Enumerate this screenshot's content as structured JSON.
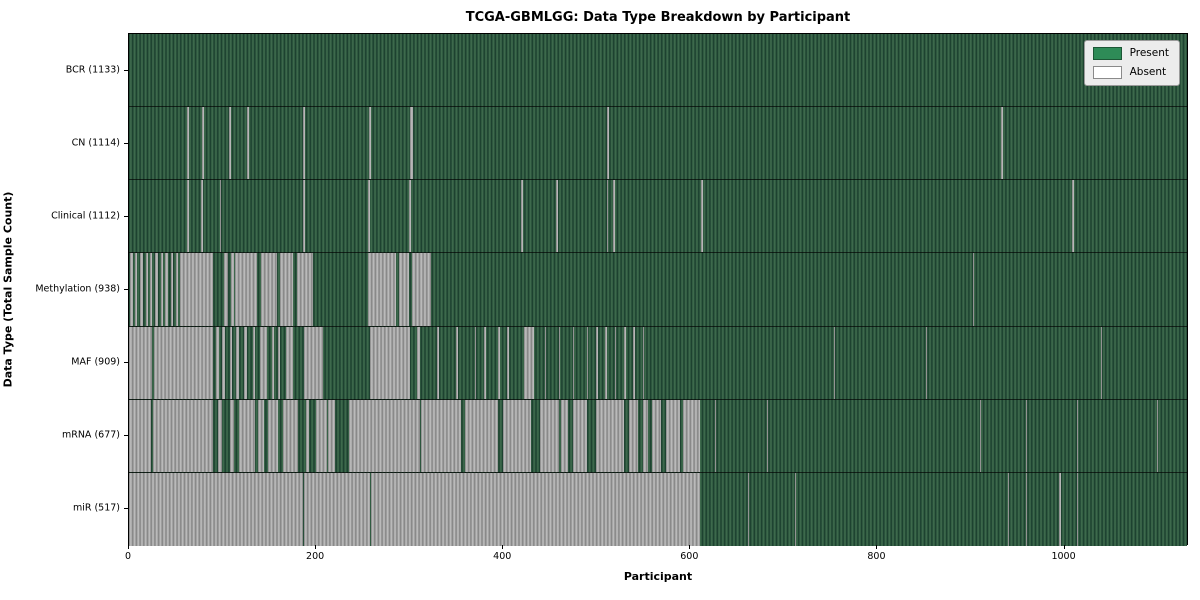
{
  "title": "TCGA-GBMLGG: Data Type Breakdown by Participant",
  "xlabel": "Participant",
  "ylabel": "Data Type (Total Sample Count)",
  "legend": {
    "position": "upper right",
    "items": [
      {
        "label": "Present",
        "color": "#2e8b57"
      },
      {
        "label": "Absent",
        "color": "#ffffff"
      }
    ]
  },
  "colors": {
    "present_fill": "#2e8b57",
    "present_stripe_dark": "#16382a",
    "absent_fill": "#ffffff",
    "absent_stripe_gray": "#a3a3a3",
    "axis": "#000000",
    "background": "#ffffff"
  },
  "chart_data": {
    "type": "heatmap",
    "x_axis": {
      "label": "Participant",
      "range": [
        0,
        1133
      ],
      "ticks": [
        0,
        200,
        400,
        600,
        800,
        1000
      ]
    },
    "n_participants": 1133,
    "grid": false,
    "rows": [
      {
        "label": "BCR (1133)",
        "name": "BCR",
        "present_count": 1133,
        "absent_segments": []
      },
      {
        "label": "CN (1114)",
        "name": "CN",
        "present_count": 1114,
        "absent_segments": [
          [
            62,
            64
          ],
          [
            78,
            80
          ],
          [
            83,
            84
          ],
          [
            107,
            109
          ],
          [
            126,
            128
          ],
          [
            186,
            188
          ],
          [
            257,
            259
          ],
          [
            301,
            304
          ],
          [
            512,
            514
          ],
          [
            934,
            936
          ]
        ]
      },
      {
        "label": "Clinical (1112)",
        "name": "Clinical",
        "present_count": 1112,
        "absent_segments": [
          [
            62,
            64
          ],
          [
            77,
            79
          ],
          [
            97,
            99
          ],
          [
            186,
            188
          ],
          [
            256,
            258
          ],
          [
            300,
            302
          ],
          [
            420,
            422
          ],
          [
            457,
            459
          ],
          [
            512,
            513
          ],
          [
            518,
            520
          ],
          [
            613,
            615
          ],
          [
            1010,
            1012
          ]
        ]
      },
      {
        "label": "Methylation (938)",
        "name": "Methylation",
        "present_count": 938,
        "absent_segments": [
          [
            1,
            4
          ],
          [
            6,
            9
          ],
          [
            12,
            15
          ],
          [
            18,
            20
          ],
          [
            22,
            25
          ],
          [
            28,
            31
          ],
          [
            34,
            36
          ],
          [
            39,
            42
          ],
          [
            45,
            47
          ],
          [
            50,
            53
          ],
          [
            55,
            90
          ],
          [
            102,
            106
          ],
          [
            109,
            112
          ],
          [
            114,
            137
          ],
          [
            141,
            158
          ],
          [
            162,
            176
          ],
          [
            180,
            197
          ],
          [
            256,
            286
          ],
          [
            289,
            300
          ],
          [
            303,
            323
          ],
          [
            904,
            905
          ]
        ]
      },
      {
        "label": "MAF (909)",
        "name": "MAF",
        "present_count": 909,
        "absent_segments": [
          [
            0,
            25
          ],
          [
            27,
            90
          ],
          [
            93,
            96
          ],
          [
            100,
            103
          ],
          [
            108,
            110
          ],
          [
            115,
            118
          ],
          [
            123,
            126
          ],
          [
            133,
            135
          ],
          [
            140,
            148
          ],
          [
            153,
            155
          ],
          [
            160,
            162
          ],
          [
            168,
            176
          ],
          [
            187,
            208
          ],
          [
            258,
            301
          ],
          [
            308,
            312
          ],
          [
            330,
            332
          ],
          [
            350,
            352
          ],
          [
            370,
            372
          ],
          [
            380,
            382
          ],
          [
            395,
            397
          ],
          [
            405,
            407
          ],
          [
            423,
            434
          ],
          [
            445,
            447
          ],
          [
            460,
            462
          ],
          [
            475,
            477
          ],
          [
            490,
            492
          ],
          [
            500,
            502
          ],
          [
            510,
            512
          ],
          [
            520,
            522
          ],
          [
            530,
            532
          ],
          [
            540,
            542
          ],
          [
            550,
            552
          ],
          [
            755,
            756
          ],
          [
            854,
            855
          ],
          [
            1041,
            1042
          ]
        ]
      },
      {
        "label": "mRNA (677)",
        "name": "mRNA",
        "present_count": 677,
        "absent_segments": [
          [
            0,
            24
          ],
          [
            26,
            90
          ],
          [
            95,
            100
          ],
          [
            108,
            112
          ],
          [
            118,
            135
          ],
          [
            138,
            145
          ],
          [
            149,
            160
          ],
          [
            165,
            181
          ],
          [
            190,
            193
          ],
          [
            200,
            212
          ],
          [
            213,
            221
          ],
          [
            236,
            312
          ],
          [
            313,
            356
          ],
          [
            360,
            395
          ],
          [
            400,
            430
          ],
          [
            440,
            460
          ],
          [
            463,
            470
          ],
          [
            475,
            490
          ],
          [
            500,
            530
          ],
          [
            535,
            545
          ],
          [
            550,
            556
          ],
          [
            560,
            570
          ],
          [
            575,
            590
          ],
          [
            593,
            612
          ],
          [
            628,
            629
          ],
          [
            683,
            684
          ],
          [
            911,
            912
          ],
          [
            961,
            962
          ],
          [
            1015,
            1016
          ],
          [
            1101,
            1102
          ]
        ]
      },
      {
        "label": "miR (517)",
        "name": "miR",
        "present_count": 517,
        "absent_segments": [
          [
            0,
            186
          ],
          [
            187,
            258
          ],
          [
            259,
            612
          ],
          [
            663,
            664
          ],
          [
            713,
            714
          ],
          [
            941,
            942
          ],
          [
            961,
            962
          ],
          [
            996,
            998
          ],
          [
            1015,
            1016
          ]
        ]
      }
    ]
  }
}
